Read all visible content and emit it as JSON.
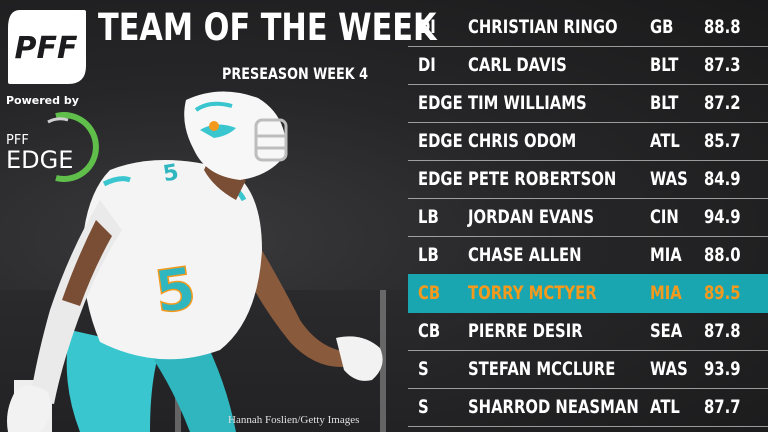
{
  "header": {
    "title": "TEAM OF THE WEEK",
    "subtitle": "PRESEASON WEEK 4"
  },
  "branding": {
    "logo_text": "PFF",
    "powered_by": "Powered by",
    "edge_prefix": "PFF",
    "edge_text": "EDGE"
  },
  "photo": {
    "jersey_number": "5",
    "credit": "Hannah Foslien/Getty Images"
  },
  "colors": {
    "highlight_bg": "#1aa6b0",
    "highlight_text": "#f39a1e",
    "edge_ring": "#5fbf4a"
  },
  "roster": [
    {
      "pos": "DI",
      "name": "CHRISTIAN RINGO",
      "team": "GB",
      "grade": "88.8",
      "highlight": false
    },
    {
      "pos": "DI",
      "name": "CARL DAVIS",
      "team": "BLT",
      "grade": "87.3",
      "highlight": false
    },
    {
      "pos": "EDGE",
      "name": "TIM WILLIAMS",
      "team": "BLT",
      "grade": "87.2",
      "highlight": false
    },
    {
      "pos": "EDGE",
      "name": "CHRIS ODOM",
      "team": "ATL",
      "grade": "85.7",
      "highlight": false
    },
    {
      "pos": "EDGE",
      "name": "PETE ROBERTSON",
      "team": "WAS",
      "grade": "84.9",
      "highlight": false
    },
    {
      "pos": "LB",
      "name": "JORDAN EVANS",
      "team": "CIN",
      "grade": "94.9",
      "highlight": false
    },
    {
      "pos": "LB",
      "name": "CHASE ALLEN",
      "team": "MIA",
      "grade": "88.0",
      "highlight": false
    },
    {
      "pos": "CB",
      "name": "TORRY MCTYER",
      "team": "MIA",
      "grade": "89.5",
      "highlight": true
    },
    {
      "pos": "CB",
      "name": "PIERRE DESIR",
      "team": "SEA",
      "grade": "87.8",
      "highlight": false
    },
    {
      "pos": "S",
      "name": "STEFAN MCCLURE",
      "team": "WAS",
      "grade": "93.9",
      "highlight": false
    },
    {
      "pos": "S",
      "name": "SHARROD NEASMAN",
      "team": "ATL",
      "grade": "87.7",
      "highlight": false
    }
  ]
}
